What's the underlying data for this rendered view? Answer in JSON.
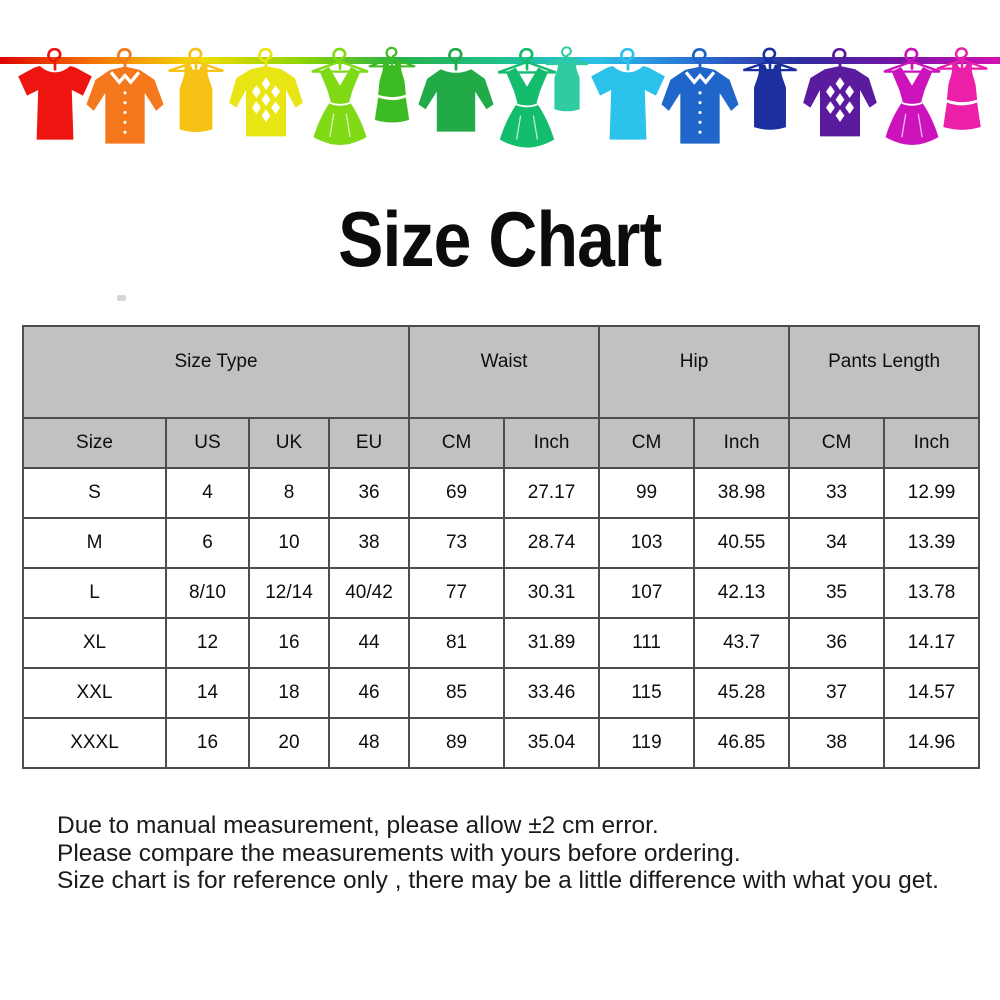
{
  "page": {
    "background": "#ffffff"
  },
  "banner": {
    "line_gradient": [
      "#dd0400",
      "#f57900",
      "#f2dc00",
      "#8fd400",
      "#27b24c",
      "#1fc08a",
      "#29c0e8",
      "#2a6ad0",
      "#2c2d9e",
      "#7a12a8",
      "#d411b4"
    ],
    "items": [
      {
        "icon": "tshirt-icon",
        "color": "#ee1511"
      },
      {
        "icon": "shirt-icon",
        "color": "#f5791c"
      },
      {
        "icon": "tank-top-icon",
        "color": "#f6c216"
      },
      {
        "icon": "argyle-sweater-icon",
        "color": "#e9e414"
      },
      {
        "icon": "dress-icon",
        "color": "#7fd915"
      },
      {
        "icon": "tank-dress-icon",
        "color": "#3dbb22"
      },
      {
        "icon": "long-sleeve-icon",
        "color": "#21aa47"
      },
      {
        "icon": "dress-icon",
        "color": "#13bd6d"
      },
      {
        "icon": "tank-top-icon",
        "color": "#2fcba1"
      },
      {
        "icon": "tshirt-icon",
        "color": "#2bc2ec"
      },
      {
        "icon": "shirt-icon",
        "color": "#2065c9"
      },
      {
        "icon": "tank-top-icon",
        "color": "#1c2f9f"
      },
      {
        "icon": "argyle-sweater-icon",
        "color": "#5a1b9e"
      },
      {
        "icon": "dress-icon",
        "color": "#cc13bb"
      },
      {
        "icon": "tank-dress-icon",
        "color": "#ec1fa9"
      }
    ]
  },
  "title": "Size Chart",
  "table": {
    "group_headers": [
      {
        "label": "Size Type",
        "colspan": 4
      },
      {
        "label": "Waist",
        "colspan": 2
      },
      {
        "label": "Hip",
        "colspan": 2
      },
      {
        "label": "Pants Length",
        "colspan": 2
      }
    ],
    "column_headers": [
      "Size",
      "US",
      "UK",
      "EU",
      "CM",
      "Inch",
      "CM",
      "Inch",
      "CM",
      "Inch"
    ],
    "rows": [
      [
        "S",
        "4",
        "8",
        "36",
        "69",
        "27.17",
        "99",
        "38.98",
        "33",
        "12.99"
      ],
      [
        "M",
        "6",
        "10",
        "38",
        "73",
        "28.74",
        "103",
        "40.55",
        "34",
        "13.39"
      ],
      [
        "L",
        "8/10",
        "12/14",
        "40/42",
        "77",
        "30.31",
        "107",
        "42.13",
        "35",
        "13.78"
      ],
      [
        "XL",
        "12",
        "16",
        "44",
        "81",
        "31.89",
        "111",
        "43.7",
        "36",
        "14.17"
      ],
      [
        "XXL",
        "14",
        "18",
        "46",
        "85",
        "33.46",
        "115",
        "45.28",
        "37",
        "14.57"
      ],
      [
        "XXXL",
        "16",
        "20",
        "48",
        "89",
        "35.04",
        "119",
        "46.85",
        "38",
        "14.96"
      ]
    ]
  },
  "notes": [
    "Due to manual measurement, please allow ±2 cm error.",
    "Please compare the measurements with yours before ordering.",
    "Size chart is for reference only , there may be a little difference with what you get."
  ],
  "colors": {
    "header_background": "#c1c1c1",
    "table_border": "#4d4d4d",
    "title_text": "#0c0c0c",
    "note_text": "#1a1a1a"
  },
  "chart_data": {
    "type": "table",
    "title": "Size Chart",
    "columns": [
      "Size",
      "US",
      "UK",
      "EU",
      "Waist CM",
      "Waist Inch",
      "Hip CM",
      "Hip Inch",
      "Pants Length CM",
      "Pants Length Inch"
    ],
    "rows": [
      [
        "S",
        "4",
        "8",
        "36",
        "69",
        "27.17",
        "99",
        "38.98",
        "33",
        "12.99"
      ],
      [
        "M",
        "6",
        "10",
        "38",
        "73",
        "28.74",
        "103",
        "40.55",
        "34",
        "13.39"
      ],
      [
        "L",
        "8/10",
        "12/14",
        "40/42",
        "77",
        "30.31",
        "107",
        "42.13",
        "35",
        "13.78"
      ],
      [
        "XL",
        "12",
        "16",
        "44",
        "81",
        "31.89",
        "111",
        "43.7",
        "36",
        "14.17"
      ],
      [
        "XXL",
        "14",
        "18",
        "46",
        "85",
        "33.46",
        "115",
        "45.28",
        "37",
        "14.57"
      ],
      [
        "XXXL",
        "16",
        "20",
        "48",
        "89",
        "35.04",
        "119",
        "46.85",
        "38",
        "14.96"
      ]
    ],
    "notes": [
      "Due to manual measurement, please allow ±2 cm error.",
      "Please compare the measurements with yours before ordering.",
      "Size chart is for reference only , there may be a little difference with what you get."
    ]
  }
}
